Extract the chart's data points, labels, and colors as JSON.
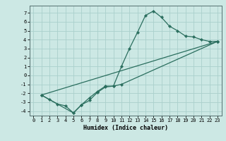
{
  "title": "",
  "xlabel": "Humidex (Indice chaleur)",
  "ylabel": "",
  "bg_color": "#cce8e4",
  "grid_color": "#aad0cc",
  "line_color": "#2a6e5e",
  "xlim": [
    -0.5,
    23.5
  ],
  "ylim": [
    -4.5,
    7.8
  ],
  "xticks": [
    0,
    1,
    2,
    3,
    4,
    5,
    6,
    7,
    8,
    9,
    10,
    11,
    12,
    13,
    14,
    15,
    16,
    17,
    18,
    19,
    20,
    21,
    22,
    23
  ],
  "yticks": [
    -4,
    -3,
    -2,
    -1,
    0,
    1,
    2,
    3,
    4,
    5,
    6,
    7
  ],
  "line1_x": [
    1,
    2,
    3,
    4,
    5,
    6,
    7,
    8,
    9,
    10,
    11,
    12,
    13,
    14,
    15,
    16,
    17,
    18,
    19,
    20,
    21,
    22,
    23
  ],
  "line1_y": [
    -2.2,
    -2.7,
    -3.2,
    -3.4,
    -4.2,
    -3.3,
    -2.8,
    -1.9,
    -1.3,
    -1.2,
    1.0,
    3.0,
    4.8,
    6.7,
    7.2,
    6.5,
    5.5,
    5.0,
    4.4,
    4.3,
    4.0,
    3.8,
    3.8
  ],
  "line2_x": [
    1,
    5,
    6,
    7,
    8,
    9,
    10,
    11,
    23
  ],
  "line2_y": [
    -2.2,
    -4.2,
    -3.3,
    -2.5,
    -1.8,
    -1.2,
    -1.2,
    -1.0,
    3.8
  ],
  "line3_x": [
    1,
    23
  ],
  "line3_y": [
    -2.2,
    3.8
  ],
  "marker": "D",
  "markersize": 2.2,
  "linewidth": 0.9,
  "font_family": "monospace",
  "tick_fontsize": 5.0,
  "xlabel_fontsize": 6.0
}
